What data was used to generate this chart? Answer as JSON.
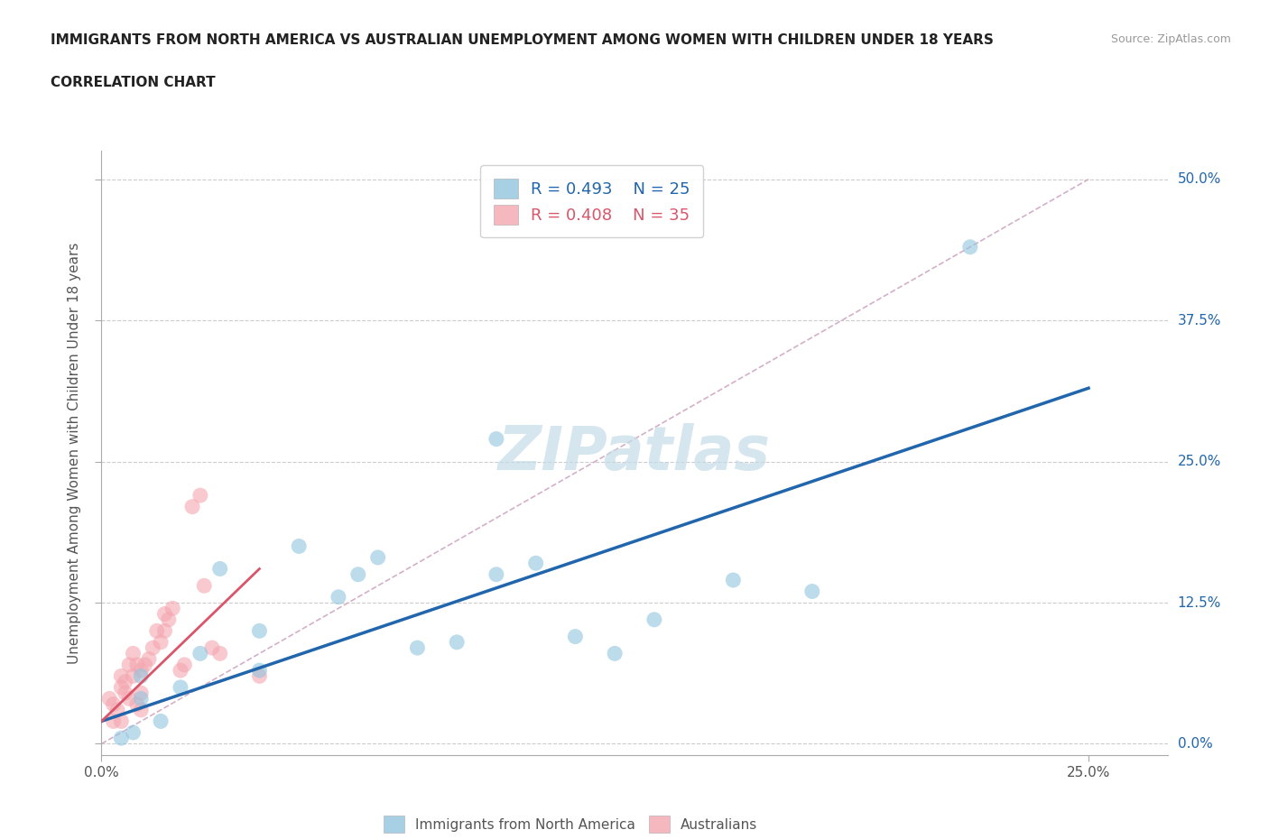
{
  "title_line1": "IMMIGRANTS FROM NORTH AMERICA VS AUSTRALIAN UNEMPLOYMENT AMONG WOMEN WITH CHILDREN UNDER 18 YEARS",
  "title_line2": "CORRELATION CHART",
  "source": "Source: ZipAtlas.com",
  "ylabel": "Unemployment Among Women with Children Under 18 years",
  "xlabel_ticks": [
    "0.0%",
    "25.0%"
  ],
  "ylabel_ticks": [
    "0.0%",
    "12.5%",
    "25.0%",
    "37.5%",
    "50.0%"
  ],
  "xlim": [
    0.0,
    0.27
  ],
  "ylim": [
    -0.01,
    0.525
  ],
  "blue_R": "R = 0.493",
  "blue_N": "N = 25",
  "pink_R": "R = 0.408",
  "pink_N": "N = 35",
  "blue_color": "#92c5de",
  "pink_color": "#f4a6b0",
  "blue_line_color": "#2166ac",
  "pink_line_color": "#d9566a",
  "diag_line_color": "#d4b0c8",
  "watermark_color": "#c5dce8",
  "blue_scatter_x": [
    0.005,
    0.008,
    0.01,
    0.01,
    0.015,
    0.02,
    0.025,
    0.03,
    0.04,
    0.04,
    0.05,
    0.06,
    0.065,
    0.07,
    0.08,
    0.09,
    0.1,
    0.11,
    0.12,
    0.13,
    0.14,
    0.16,
    0.18,
    0.22,
    0.1
  ],
  "blue_scatter_y": [
    0.005,
    0.01,
    0.04,
    0.06,
    0.02,
    0.05,
    0.08,
    0.155,
    0.1,
    0.065,
    0.175,
    0.13,
    0.15,
    0.165,
    0.085,
    0.09,
    0.15,
    0.16,
    0.095,
    0.08,
    0.11,
    0.145,
    0.135,
    0.44,
    0.27
  ],
  "pink_scatter_x": [
    0.002,
    0.003,
    0.003,
    0.004,
    0.005,
    0.005,
    0.006,
    0.006,
    0.007,
    0.007,
    0.008,
    0.008,
    0.009,
    0.009,
    0.01,
    0.01,
    0.01,
    0.011,
    0.012,
    0.013,
    0.014,
    0.015,
    0.016,
    0.016,
    0.017,
    0.018,
    0.02,
    0.021,
    0.023,
    0.025,
    0.026,
    0.028,
    0.03,
    0.04,
    0.005
  ],
  "pink_scatter_y": [
    0.04,
    0.02,
    0.035,
    0.03,
    0.05,
    0.06,
    0.045,
    0.055,
    0.04,
    0.07,
    0.06,
    0.08,
    0.035,
    0.07,
    0.03,
    0.045,
    0.065,
    0.07,
    0.075,
    0.085,
    0.1,
    0.09,
    0.1,
    0.115,
    0.11,
    0.12,
    0.065,
    0.07,
    0.21,
    0.22,
    0.14,
    0.085,
    0.08,
    0.06,
    0.02
  ],
  "blue_line_x": [
    0.0,
    0.25
  ],
  "blue_line_y": [
    0.02,
    0.315
  ],
  "pink_line_x": [
    0.0,
    0.04
  ],
  "pink_line_y": [
    0.02,
    0.155
  ],
  "diag_line_x": [
    0.0,
    0.25
  ],
  "diag_line_y": [
    0.0,
    0.5
  ]
}
